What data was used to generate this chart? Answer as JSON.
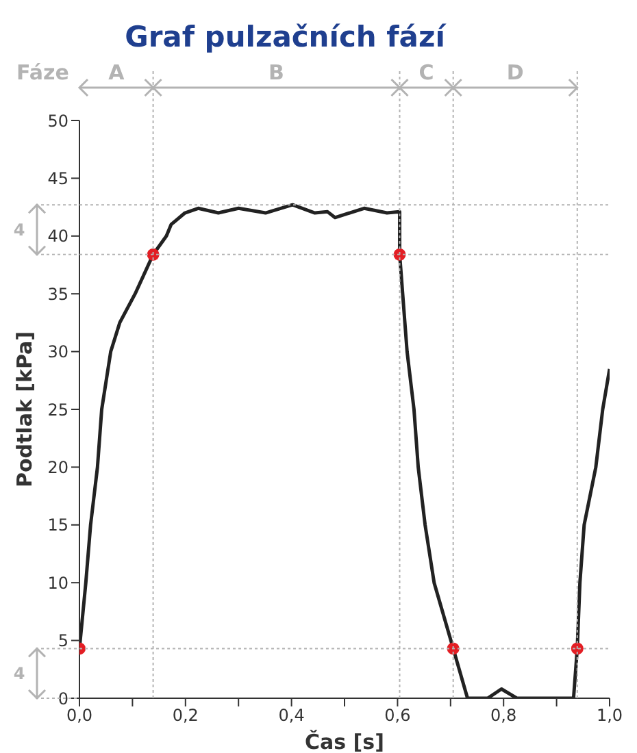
{
  "chart_data": {
    "type": "line",
    "title": "Graf pulzačních fází",
    "xlabel": "Čas [s]",
    "ylabel": "Podtlak [kPa]",
    "xlim": [
      0,
      1
    ],
    "ylim": [
      0,
      50
    ],
    "xticks": [
      {
        "value": 0,
        "label": "0,0"
      },
      {
        "value": 0.1,
        "label": null
      },
      {
        "value": 0.2,
        "label": "0,2"
      },
      {
        "value": 0.3,
        "label": null
      },
      {
        "value": 0.4,
        "label": "0,4"
      },
      {
        "value": 0.5,
        "label": null
      },
      {
        "value": 0.6,
        "label": "0,6"
      },
      {
        "value": 0.7,
        "label": null
      },
      {
        "value": 0.8,
        "label": "0,8"
      },
      {
        "value": 0.9,
        "label": null
      },
      {
        "value": 1,
        "label": "1,0"
      }
    ],
    "yticks": [
      0,
      5,
      10,
      15,
      20,
      25,
      30,
      35,
      40,
      45,
      50
    ],
    "grid": false,
    "legend": false,
    "series": [
      {
        "color": "#222222",
        "marker": "none",
        "line_style": "solid",
        "x": [
          0,
          0.012,
          0.021,
          0.034,
          0.042,
          0.059,
          0.076,
          0.105,
          0.139,
          0.164,
          0.173,
          0.199,
          0.224,
          0.262,
          0.3,
          0.351,
          0.402,
          0.444,
          0.468,
          0.482,
          0.537,
          0.58,
          0.604,
          0.604,
          0.618,
          0.631,
          0.639,
          0.652,
          0.669,
          0.705,
          0.732,
          0.77,
          0.796,
          0.825,
          0.932,
          0.939,
          0.944,
          0.952,
          0.974,
          0.987,
          1
        ],
        "values": [
          4.3,
          10,
          15,
          20,
          25,
          30,
          32.5,
          35,
          38.4,
          40,
          41,
          42,
          42.4,
          42,
          42.4,
          42,
          42.7,
          42,
          42.1,
          41.6,
          42.4,
          42,
          42.1,
          38.4,
          30,
          25,
          20,
          15,
          10,
          4.3,
          0,
          0,
          0.8,
          0,
          0,
          4.3,
          10,
          15,
          20,
          25,
          28.5
        ]
      },
      {
        "type": "scatter",
        "color": "#e31e24",
        "marker": "circle",
        "x": [
          0,
          0.139,
          0.604,
          0.705,
          0.939
        ],
        "values": [
          4.3,
          38.4,
          38.4,
          4.3,
          4.3
        ]
      }
    ],
    "ref_lines": [
      {
        "axis": "x",
        "value": 0.139,
        "color": "#b3b3b3",
        "line_style": "dotted"
      },
      {
        "axis": "x",
        "value": 0.604,
        "color": "#b3b3b3",
        "line_style": "dotted"
      },
      {
        "axis": "x",
        "value": 0.705,
        "color": "#b3b3b3",
        "line_style": "dotted"
      },
      {
        "axis": "x",
        "value": 0.939,
        "color": "#b3b3b3",
        "line_style": "dotted"
      },
      {
        "axis": "y",
        "value": 42.7,
        "color": "#b3b3b3",
        "line_style": "dotted"
      },
      {
        "axis": "y",
        "value": 38.4,
        "color": "#b3b3b3",
        "line_style": "dotted"
      },
      {
        "axis": "y",
        "value": 4.3,
        "color": "#b3b3b3",
        "line_style": "dotted"
      }
    ],
    "annotations": [
      "Fáze",
      "A",
      "B",
      "C",
      "D",
      "4",
      "4"
    ]
  }
}
